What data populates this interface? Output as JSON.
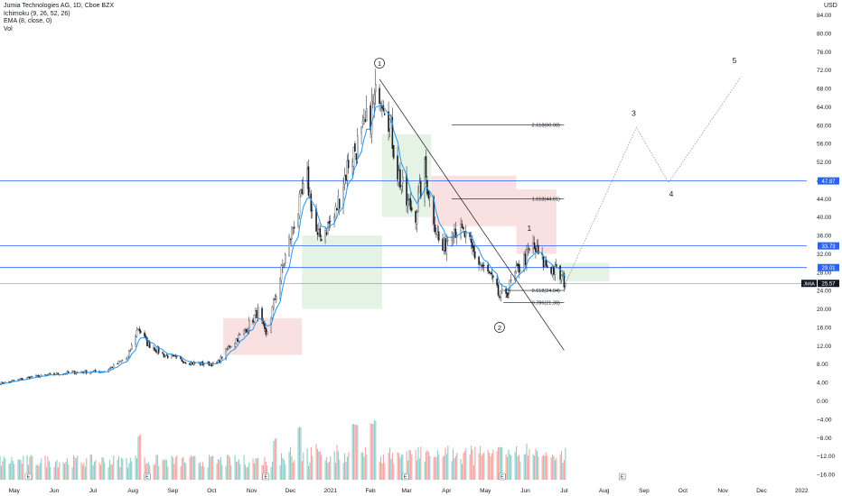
{
  "legend": {
    "symbol": "Jumia Technologies AG, 1D, Cboe BZX",
    "ichimoku": "Ichimoku (9, 26, 52, 26)",
    "ema": "EMA (8, close, 0)",
    "vol": "Vol"
  },
  "currency": "USD",
  "colors": {
    "background": "#ffffff",
    "candle": "#131722",
    "ema": "#2196f3",
    "hline": "#2962ff",
    "cloud_bull": "#a5d6a7",
    "cloud_bear": "#ef9a9a",
    "vol_up": "#26a69a",
    "vol_down": "#ef5350",
    "price_badge": "#131722",
    "level_badge": "#2962ff"
  },
  "chart_data": {
    "type": "candlestick",
    "y_axis": {
      "ticks": [
        "84.00",
        "80.00",
        "76.00",
        "72.00",
        "68.00",
        "64.00",
        "60.00",
        "56.00",
        "52.00",
        "48.00",
        "44.00",
        "40.00",
        "36.00",
        "32.00",
        "28.00",
        "24.00",
        "20.00",
        "16.00",
        "12.00",
        "8.00",
        "4.00",
        "0.00",
        "−4.00",
        "−8.00",
        "−12.00",
        "−16.00"
      ],
      "range": [
        -18,
        88
      ]
    },
    "x_axis": {
      "labels": [
        "May",
        "Jun",
        "Jul",
        "Aug",
        "Sep",
        "Oct",
        "Nov",
        "Dec",
        "2021",
        "Feb",
        "Mar",
        "Apr",
        "May",
        "Jun",
        "Jul",
        "Aug",
        "Sep",
        "Oct",
        "Nov",
        "Dec",
        "2022"
      ],
      "range": [
        "2020-04-20",
        "2022-01-05"
      ]
    },
    "price_path": [
      {
        "date": "2020-04-20",
        "close": 3.8
      },
      {
        "date": "2020-05-15",
        "close": 5.2
      },
      {
        "date": "2020-06-15",
        "close": 6.2
      },
      {
        "date": "2020-07-10",
        "close": 6.4
      },
      {
        "date": "2020-07-28",
        "close": 9.5
      },
      {
        "date": "2020-08-05",
        "close": 16.0
      },
      {
        "date": "2020-08-12",
        "close": 12.5
      },
      {
        "date": "2020-08-25",
        "close": 10.0
      },
      {
        "date": "2020-09-15",
        "close": 8.2
      },
      {
        "date": "2020-10-05",
        "close": 8.0
      },
      {
        "date": "2020-10-15",
        "close": 12.0
      },
      {
        "date": "2020-10-26",
        "close": 15.0
      },
      {
        "date": "2020-11-06",
        "close": 19.5
      },
      {
        "date": "2020-11-12",
        "close": 14.0
      },
      {
        "date": "2020-11-23",
        "close": 27.0
      },
      {
        "date": "2020-12-03",
        "close": 38.0
      },
      {
        "date": "2020-12-14",
        "close": 48.0
      },
      {
        "date": "2020-12-22",
        "close": 35.0
      },
      {
        "date": "2021-01-04",
        "close": 40.0
      },
      {
        "date": "2021-01-15",
        "close": 52.0
      },
      {
        "date": "2021-01-26",
        "close": 58.0
      },
      {
        "date": "2021-02-03",
        "close": 64.0
      },
      {
        "date": "2021-02-08",
        "close": 68.5
      },
      {
        "date": "2021-02-14",
        "close": 64.0
      },
      {
        "date": "2021-02-22",
        "close": 50.0
      },
      {
        "date": "2021-03-01",
        "close": 43.0
      },
      {
        "date": "2021-03-08",
        "close": 41.0
      },
      {
        "date": "2021-03-15",
        "close": 50.0
      },
      {
        "date": "2021-03-22",
        "close": 40.0
      },
      {
        "date": "2021-03-28",
        "close": 32.0
      },
      {
        "date": "2021-04-05",
        "close": 38.0
      },
      {
        "date": "2021-04-15",
        "close": 36.0
      },
      {
        "date": "2021-04-26",
        "close": 30.0
      },
      {
        "date": "2021-05-05",
        "close": 27.0
      },
      {
        "date": "2021-05-12",
        "close": 22.5
      },
      {
        "date": "2021-05-18",
        "close": 24.0
      },
      {
        "date": "2021-05-27",
        "close": 29.0
      },
      {
        "date": "2021-06-07",
        "close": 33.5
      },
      {
        "date": "2021-06-15",
        "close": 30.0
      },
      {
        "date": "2021-06-25",
        "close": 28.0
      },
      {
        "date": "2021-07-02",
        "close": 25.57
      }
    ],
    "ema_period": 8,
    "ichimoku_cloud": [
      {
        "start": "2020-10-10",
        "end": "2020-12-10",
        "top": 18.0,
        "bottom": 10.0,
        "color": "bear"
      },
      {
        "start": "2020-12-10",
        "end": "2021-02-10",
        "top": 36.0,
        "bottom": 20.0,
        "color": "bull"
      },
      {
        "start": "2021-02-10",
        "end": "2021-03-20",
        "top": 58.0,
        "bottom": 40.0,
        "color": "bull"
      },
      {
        "start": "2021-03-20",
        "end": "2021-05-25",
        "top": 49.0,
        "bottom": 38.0,
        "color": "bear"
      },
      {
        "start": "2021-05-25",
        "end": "2021-06-25",
        "top": 46.0,
        "bottom": 32.0,
        "color": "bear"
      },
      {
        "start": "2021-06-25",
        "end": "2021-08-05",
        "top": 30.0,
        "bottom": 26.0,
        "color": "bull"
      }
    ],
    "horizontal_levels": [
      {
        "price": 47.87,
        "label": "47.87"
      },
      {
        "price": 33.73,
        "label": "33.73"
      },
      {
        "price": 29.01,
        "label": "29.01"
      }
    ],
    "last_price": {
      "price": 25.57,
      "symbol": "JMIA",
      "label": "25.57"
    },
    "fib_levels": [
      {
        "price": 60.08,
        "label": "2.618(60.08)",
        "start": "2021-04-05",
        "end": "2021-07-01"
      },
      {
        "price": 44.01,
        "label": "1.618(44.01)",
        "start": "2021-04-05",
        "end": "2021-07-01"
      },
      {
        "price": 24.04,
        "label": "0.618(24.04)",
        "start": "2021-05-15",
        "end": "2021-07-01"
      },
      {
        "price": 21.38,
        "label": "0.786(21.38)",
        "start": "2021-05-15",
        "end": "2021-07-01"
      }
    ],
    "trendline": [
      {
        "date": "2021-02-08",
        "price": 70.0
      },
      {
        "date": "2021-07-01",
        "price": 11.0
      }
    ],
    "wave_labels": [
      {
        "label": "1",
        "date": "2021-02-08",
        "price": 73.0,
        "circled": true
      },
      {
        "label": "2",
        "date": "2021-05-12",
        "price": 15.5,
        "circled": true
      },
      {
        "label": "1",
        "date": "2021-06-04",
        "price": 37.0,
        "circled": false
      },
      {
        "label": "2",
        "date": "2021-05-18",
        "price": 22.5,
        "circled": false
      },
      {
        "label": "3",
        "date": "2021-08-24",
        "price": 62.0,
        "circled": false
      },
      {
        "label": "4",
        "date": "2021-09-22",
        "price": 44.5,
        "circled": false
      },
      {
        "label": "5",
        "date": "2021-11-10",
        "price": 73.5,
        "circled": false
      }
    ],
    "projection_path": [
      {
        "date": "2021-07-02",
        "price": 25.57
      },
      {
        "date": "2021-08-26",
        "price": 59.5
      },
      {
        "date": "2021-09-20",
        "price": 47.5
      },
      {
        "date": "2021-11-15",
        "price": 70.5
      }
    ],
    "volume_peaks": [
      {
        "date": "2020-08-05",
        "value": -12.5
      },
      {
        "date": "2020-08-07",
        "value": -7.0
      },
      {
        "date": "2020-11-20",
        "value": -8.0
      },
      {
        "date": "2020-12-07",
        "value": -5.5
      },
      {
        "date": "2021-01-20",
        "value": -5.0
      },
      {
        "date": "2021-02-03",
        "value": -4.0
      },
      {
        "date": "2021-05-12",
        "value": -10.0
      }
    ],
    "event_markers": [
      {
        "date": "2020-05-12",
        "label": "E"
      },
      {
        "date": "2020-08-12",
        "label": "E"
      },
      {
        "date": "2020-11-12",
        "label": "E"
      },
      {
        "date": "2021-02-28",
        "label": "E"
      },
      {
        "date": "2021-05-14",
        "label": "E"
      },
      {
        "date": "2021-08-15",
        "label": "E"
      }
    ]
  }
}
